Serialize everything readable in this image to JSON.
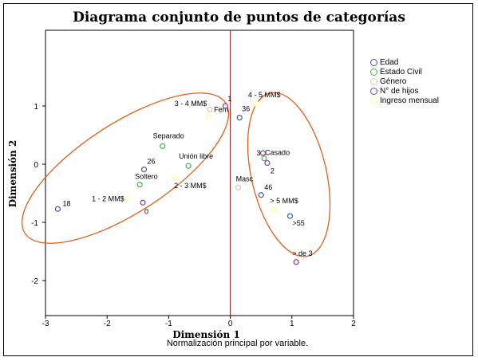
{
  "chart_data": {
    "type": "scatter",
    "title": "Diagrama conjunto de puntos de categorías",
    "xlabel": "Dimensión 1",
    "ylabel": "Dimensión 2",
    "footnote": "Normalización principal por variable.",
    "xlim": [
      -3,
      2
    ],
    "ylim": [
      -2.6,
      2.3
    ],
    "xticks": [
      "-3",
      "-2",
      "-1",
      "0",
      "1",
      "2"
    ],
    "yticks": [
      "-2",
      "-1",
      "0",
      "1"
    ],
    "reference_lines": {
      "x": 0,
      "y": 0,
      "color": "#8b1a1a"
    },
    "legend_position": "top-right",
    "series": [
      {
        "name": "Edad",
        "color": "#3b5ba5",
        "points": [
          {
            "label": "18",
            "x": -2.8,
            "y": -0.77
          },
          {
            "label": "26",
            "x": -1.4,
            "y": -0.09
          },
          {
            "label": "36",
            "x": 0.15,
            "y": 0.8
          },
          {
            "label": "46",
            "x": 0.5,
            "y": -0.53
          },
          {
            "label": ">55",
            "x": 0.97,
            "y": -0.89
          }
        ]
      },
      {
        "name": "Estado Civil",
        "color": "#4caf50",
        "points": [
          {
            "label": "Separado",
            "x": -1.1,
            "y": 0.31
          },
          {
            "label": "Unión libre",
            "x": -0.68,
            "y": -0.03
          },
          {
            "label": "Soltero",
            "x": -1.47,
            "y": -0.35
          },
          {
            "label": "Casado",
            "x": 0.55,
            "y": 0.1
          }
        ]
      },
      {
        "name": "Género",
        "color": "#d4cbb0",
        "points": [
          {
            "label": "Fem",
            "x": -0.33,
            "y": 0.94
          },
          {
            "label": "Masc",
            "x": 0.13,
            "y": -0.4
          }
        ]
      },
      {
        "name": "N° de hijos",
        "color": "#8e3aa0",
        "points": [
          {
            "label": "1",
            "x": -0.08,
            "y": 1.0
          },
          {
            "label": "0",
            "x": -1.42,
            "y": -0.66
          },
          {
            "label": "3",
            "x": 0.53,
            "y": 0.19
          },
          {
            "label": "2",
            "x": 0.6,
            "y": 0.02
          },
          {
            "label": "> de 3",
            "x": 1.07,
            "y": -1.68
          }
        ]
      },
      {
        "name": "Ingreso mensual",
        "color": "#ffff99",
        "points": [
          {
            "label": "4 - 5 MM$",
            "x": 0.42,
            "y": 1.04
          },
          {
            "label": "3 - 4 MM$",
            "x": -0.36,
            "y": 0.82
          },
          {
            "label": "2 - 3 MM$",
            "x": -0.9,
            "y": -0.22
          },
          {
            "label": "1 - 2 MM$",
            "x": -1.67,
            "y": -0.58
          },
          {
            "label": "> 5 MM$",
            "x": 0.71,
            "y": -0.78
          }
        ]
      }
    ],
    "ellipse_color": "#e06020"
  }
}
